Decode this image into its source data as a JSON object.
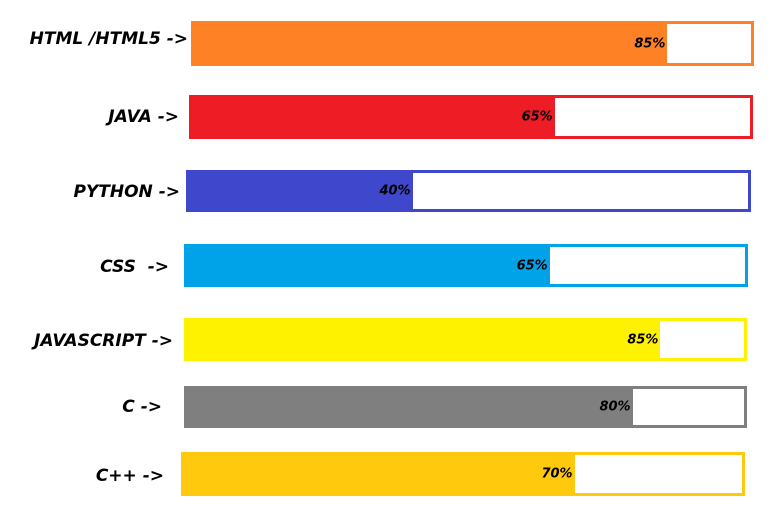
{
  "skills": [
    {
      "label": "HTML /HTML5 ->",
      "percent": 85,
      "percent_label": "85%",
      "color": "#ff8125"
    },
    {
      "label": "JAVA ->",
      "percent": 65,
      "percent_label": "65%",
      "color": "#ee1c24"
    },
    {
      "label": "PYTHON ->",
      "percent": 40,
      "percent_label": "40%",
      "color": "#3f48cc"
    },
    {
      "label": "CSS  ->",
      "percent": 65,
      "percent_label": "65%",
      "color": "#00a2e8"
    },
    {
      "label": "JAVASCRIPT ->",
      "percent": 85,
      "percent_label": "85%",
      "color": "#fff200"
    },
    {
      "label": "C ->",
      "percent": 80,
      "percent_label": "80%",
      "color": "#7f7f7f"
    },
    {
      "label": "C++ ->",
      "percent": 70,
      "percent_label": "70%",
      "color": "#ffc90e"
    }
  ]
}
